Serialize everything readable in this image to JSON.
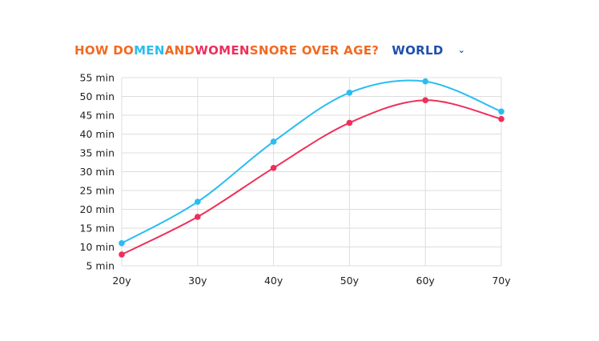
{
  "title": {
    "segments": [
      {
        "text": "HOW DO ",
        "color": "#f26a21"
      },
      {
        "text": "MEN",
        "color": "#29bdf2"
      },
      {
        "text": " AND ",
        "color": "#f26a21"
      },
      {
        "text": "WOMEN",
        "color": "#ee2f5b"
      },
      {
        "text": " SNORE OVER AGE?",
        "color": "#f26a21"
      }
    ]
  },
  "region_select": {
    "value": "WORLD",
    "color": "#1f4fad",
    "icon": "chevron-down-icon"
  },
  "colors": {
    "men": "#29bdf2",
    "women": "#ee2f5b",
    "grid": "#dddddd",
    "axis_text": "#222222"
  },
  "chart_data": {
    "type": "line",
    "x": [
      "20y",
      "30y",
      "40y",
      "50y",
      "60y",
      "70y"
    ],
    "series": [
      {
        "name": "MEN",
        "values": [
          11,
          22,
          38,
          51,
          54,
          46
        ]
      },
      {
        "name": "WOMEN",
        "values": [
          8,
          18,
          31,
          43,
          49,
          44
        ]
      }
    ],
    "ylim": [
      5,
      55
    ],
    "yticks": [
      "5 min",
      "10 min",
      "15 min",
      "20 min",
      "25 min",
      "30 min",
      "35 min",
      "40 min",
      "45 min",
      "50 min",
      "55 min"
    ],
    "grid": true,
    "title": "",
    "xlabel": "",
    "ylabel": ""
  }
}
